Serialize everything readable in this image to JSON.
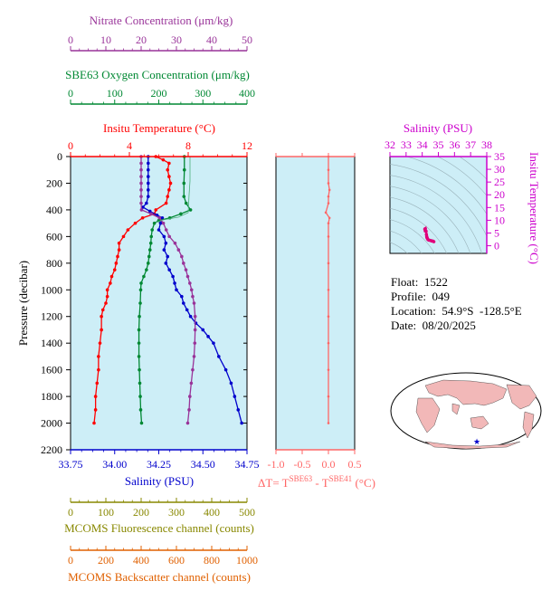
{
  "colors": {
    "temperature": "#ff0000",
    "salinity": "#0000cc",
    "oxygen": "#008833",
    "nitrate": "#993399",
    "fluorescence": "#888800",
    "backscatter": "#e06000",
    "delta_t": "#ff6666",
    "ts_axis": "#cc00cc",
    "plot_bg": "#cdeef7"
  },
  "axes": {
    "nitrate": {
      "label": "Nitrate Concentration (μm/kg)",
      "ticks": [
        "0",
        "10",
        "20",
        "30",
        "40",
        "50"
      ]
    },
    "oxygen": {
      "label": "SBE63 Oxygen Concentration (μm/kg)",
      "ticks": [
        "0",
        "100",
        "200",
        "300",
        "400"
      ]
    },
    "temperature": {
      "label": "Insitu Temperature (°C)",
      "ticks": [
        "0",
        "4",
        "8",
        "12"
      ]
    },
    "salinity": {
      "label": "Salinity (PSU)",
      "ticks": [
        "33.75",
        "34.00",
        "34.25",
        "34.50",
        "34.75"
      ]
    },
    "pressure": {
      "label": "Pressure (decibar)",
      "ticks": [
        "0",
        "200",
        "400",
        "600",
        "800",
        "1000",
        "1200",
        "1400",
        "1600",
        "1800",
        "2000",
        "2200"
      ]
    },
    "fluorescence": {
      "label": "MCOMS Fluorescence channel (counts)",
      "ticks": [
        "0",
        "100",
        "200",
        "300",
        "400",
        "500"
      ]
    },
    "backscatter": {
      "label": "MCOMS Backscatter channel (counts)",
      "ticks": [
        "0",
        "200",
        "400",
        "600",
        "800",
        "1000"
      ]
    },
    "delta_t": {
      "label_prefix": "ΔT= T",
      "sup1": "SBE63",
      "label_mid": " - T",
      "sup2": "SBE41",
      "label_suffix": " (°C)",
      "ticks": [
        "-1.0",
        "-0.5",
        "0.0",
        "0.5"
      ]
    },
    "ts_salinity": {
      "label": "Salinity (PSU)",
      "ticks": [
        "32",
        "33",
        "34",
        "35",
        "36",
        "37",
        "38"
      ]
    },
    "ts_temperature": {
      "label": "Insitu Temperature (°C)",
      "ticks": [
        "0",
        "5",
        "10",
        "15",
        "20",
        "25",
        "30",
        "35"
      ]
    }
  },
  "info": {
    "float": "Float:  1522",
    "profile": "Profile:  049",
    "location": "Location:  54.9°S  -128.5°E",
    "date": "Date:  08/20/2025"
  },
  "chart_data": [
    {
      "type": "line",
      "title": "",
      "ylabel": "Pressure (decibar)",
      "ylim": [
        2200,
        0
      ],
      "series": [
        {
          "name": "Insitu Temperature (°C)",
          "xlim": [
            0,
            12
          ],
          "points": [
            [
              5.8,
              0
            ],
            [
              6.3,
              25
            ],
            [
              6.7,
              50
            ],
            [
              6.6,
              100
            ],
            [
              6.7,
              150
            ],
            [
              6.8,
              200
            ],
            [
              6.7,
              250
            ],
            [
              6.6,
              300
            ],
            [
              6.5,
              350
            ],
            [
              5.8,
              400
            ],
            [
              5.7,
              430
            ],
            [
              4.9,
              460
            ],
            [
              4.4,
              500
            ],
            [
              3.9,
              550
            ],
            [
              3.6,
              600
            ],
            [
              3.3,
              650
            ],
            [
              3.3,
              700
            ],
            [
              3.2,
              750
            ],
            [
              3.1,
              800
            ],
            [
              3.0,
              850
            ],
            [
              2.8,
              900
            ],
            [
              2.7,
              950
            ],
            [
              2.5,
              1000
            ],
            [
              2.5,
              1050
            ],
            [
              2.4,
              1100
            ],
            [
              2.2,
              1150
            ],
            [
              2.1,
              1200
            ],
            [
              2.1,
              1300
            ],
            [
              2.0,
              1400
            ],
            [
              1.9,
              1500
            ],
            [
              1.9,
              1600
            ],
            [
              1.8,
              1700
            ],
            [
              1.7,
              1800
            ],
            [
              1.7,
              1900
            ],
            [
              1.6,
              2000
            ]
          ]
        },
        {
          "name": "Salinity (PSU)",
          "xlim": [
            33.75,
            34.75
          ],
          "points": [
            [
              34.19,
              0
            ],
            [
              34.19,
              50
            ],
            [
              34.19,
              100
            ],
            [
              34.19,
              150
            ],
            [
              34.19,
              200
            ],
            [
              34.19,
              250
            ],
            [
              34.19,
              300
            ],
            [
              34.18,
              350
            ],
            [
              34.16,
              380
            ],
            [
              34.2,
              410
            ],
            [
              34.24,
              440
            ],
            [
              34.27,
              460
            ],
            [
              34.26,
              500
            ],
            [
              34.25,
              550
            ],
            [
              34.28,
              600
            ],
            [
              34.29,
              650
            ],
            [
              34.28,
              700
            ],
            [
              34.3,
              750
            ],
            [
              34.29,
              800
            ],
            [
              34.31,
              850
            ],
            [
              34.33,
              900
            ],
            [
              34.34,
              950
            ],
            [
              34.35,
              1000
            ],
            [
              34.38,
              1050
            ],
            [
              34.39,
              1100
            ],
            [
              34.41,
              1150
            ],
            [
              34.43,
              1200
            ],
            [
              34.46,
              1250
            ],
            [
              34.5,
              1300
            ],
            [
              34.53,
              1350
            ],
            [
              34.56,
              1400
            ],
            [
              34.59,
              1500
            ],
            [
              34.63,
              1600
            ],
            [
              34.66,
              1700
            ],
            [
              34.68,
              1800
            ],
            [
              34.7,
              1900
            ],
            [
              34.72,
              2000
            ]
          ]
        },
        {
          "name": "SBE63 Oxygen Concentration (μm/kg)",
          "xlim": [
            0,
            400
          ],
          "points": [
            [
              258,
              0
            ],
            [
              258,
              100
            ],
            [
              257,
              200
            ],
            [
              257,
              300
            ],
            [
              262,
              350
            ],
            [
              272,
              400
            ],
            [
              250,
              430
            ],
            [
              225,
              460
            ],
            [
              200,
              480
            ],
            [
              190,
              500
            ],
            [
              185,
              550
            ],
            [
              183,
              600
            ],
            [
              182,
              650
            ],
            [
              180,
              700
            ],
            [
              178,
              750
            ],
            [
              176,
              800
            ],
            [
              172,
              850
            ],
            [
              166,
              900
            ],
            [
              160,
              950
            ],
            [
              159,
              1000
            ],
            [
              158,
              1100
            ],
            [
              156,
              1200
            ],
            [
              155,
              1300
            ],
            [
              155,
              1400
            ],
            [
              155,
              1500
            ],
            [
              156,
              1600
            ],
            [
              157,
              1700
            ],
            [
              158,
              1800
            ],
            [
              159,
              1900
            ],
            [
              161,
              2000
            ]
          ]
        },
        {
          "name": "Nitrate Concentration (μm/kg)",
          "xlim": [
            0,
            50
          ],
          "points": [
            [
              20.0,
              0
            ],
            [
              20.0,
              50
            ],
            [
              20.0,
              100
            ],
            [
              20.0,
              150
            ],
            [
              20.0,
              200
            ],
            [
              20.0,
              250
            ],
            [
              20.0,
              300
            ],
            [
              20.0,
              350
            ],
            [
              20.1,
              400
            ],
            [
              22.8,
              430
            ],
            [
              25.2,
              460
            ],
            [
              26.3,
              500
            ],
            [
              27.1,
              550
            ],
            [
              28.0,
              600
            ],
            [
              29.6,
              650
            ],
            [
              30.6,
              700
            ],
            [
              31.5,
              750
            ],
            [
              32.0,
              800
            ],
            [
              32.7,
              850
            ],
            [
              33.2,
              900
            ],
            [
              33.8,
              950
            ],
            [
              34.3,
              1000
            ],
            [
              34.6,
              1050
            ],
            [
              35.0,
              1100
            ],
            [
              35.3,
              1200
            ],
            [
              35.3,
              1300
            ],
            [
              35.2,
              1400
            ],
            [
              35.0,
              1500
            ],
            [
              34.6,
              1600
            ],
            [
              34.2,
              1700
            ],
            [
              33.8,
              1800
            ],
            [
              33.6,
              1900
            ],
            [
              33.2,
              2000
            ]
          ]
        }
      ]
    },
    {
      "type": "line",
      "title": "",
      "xlabel": "ΔT= TSBE63 - TSBE41 (°C)",
      "xlim": [
        -1.0,
        0.5
      ],
      "ylim": [
        2200,
        0
      ],
      "series": [
        {
          "name": "ΔT",
          "points": [
            [
              0.0,
              0
            ],
            [
              0.0,
              100
            ],
            [
              0.0,
              200
            ],
            [
              0.02,
              250
            ],
            [
              0.0,
              300
            ],
            [
              0.0,
              350
            ],
            [
              -0.05,
              420
            ],
            [
              0.02,
              460
            ],
            [
              0.0,
              500
            ],
            [
              0.0,
              600
            ],
            [
              0.0,
              800
            ],
            [
              0.0,
              1000
            ],
            [
              0.0,
              1200
            ],
            [
              0.0,
              1400
            ],
            [
              0.0,
              1600
            ],
            [
              0.0,
              1800
            ],
            [
              0.0,
              2000
            ]
          ]
        }
      ]
    },
    {
      "type": "scatter",
      "title": "",
      "xlabel": "Salinity (PSU)",
      "ylabel": "Insitu Temperature (°C)",
      "xlim": [
        32,
        38
      ],
      "ylim": [
        -3,
        35
      ],
      "series": [
        {
          "name": "T-S",
          "points": [
            [
              34.19,
              5.8
            ],
            [
              34.19,
              6.6
            ],
            [
              34.19,
              6.7
            ],
            [
              34.16,
              6.5
            ],
            [
              34.24,
              5.7
            ],
            [
              34.26,
              4.4
            ],
            [
              34.28,
              3.6
            ],
            [
              34.29,
              3.3
            ],
            [
              34.31,
              3.0
            ],
            [
              34.35,
              2.5
            ],
            [
              34.41,
              2.2
            ],
            [
              34.5,
              2.1
            ],
            [
              34.59,
              1.9
            ],
            [
              34.66,
              1.8
            ],
            [
              34.72,
              1.6
            ]
          ]
        }
      ]
    }
  ]
}
